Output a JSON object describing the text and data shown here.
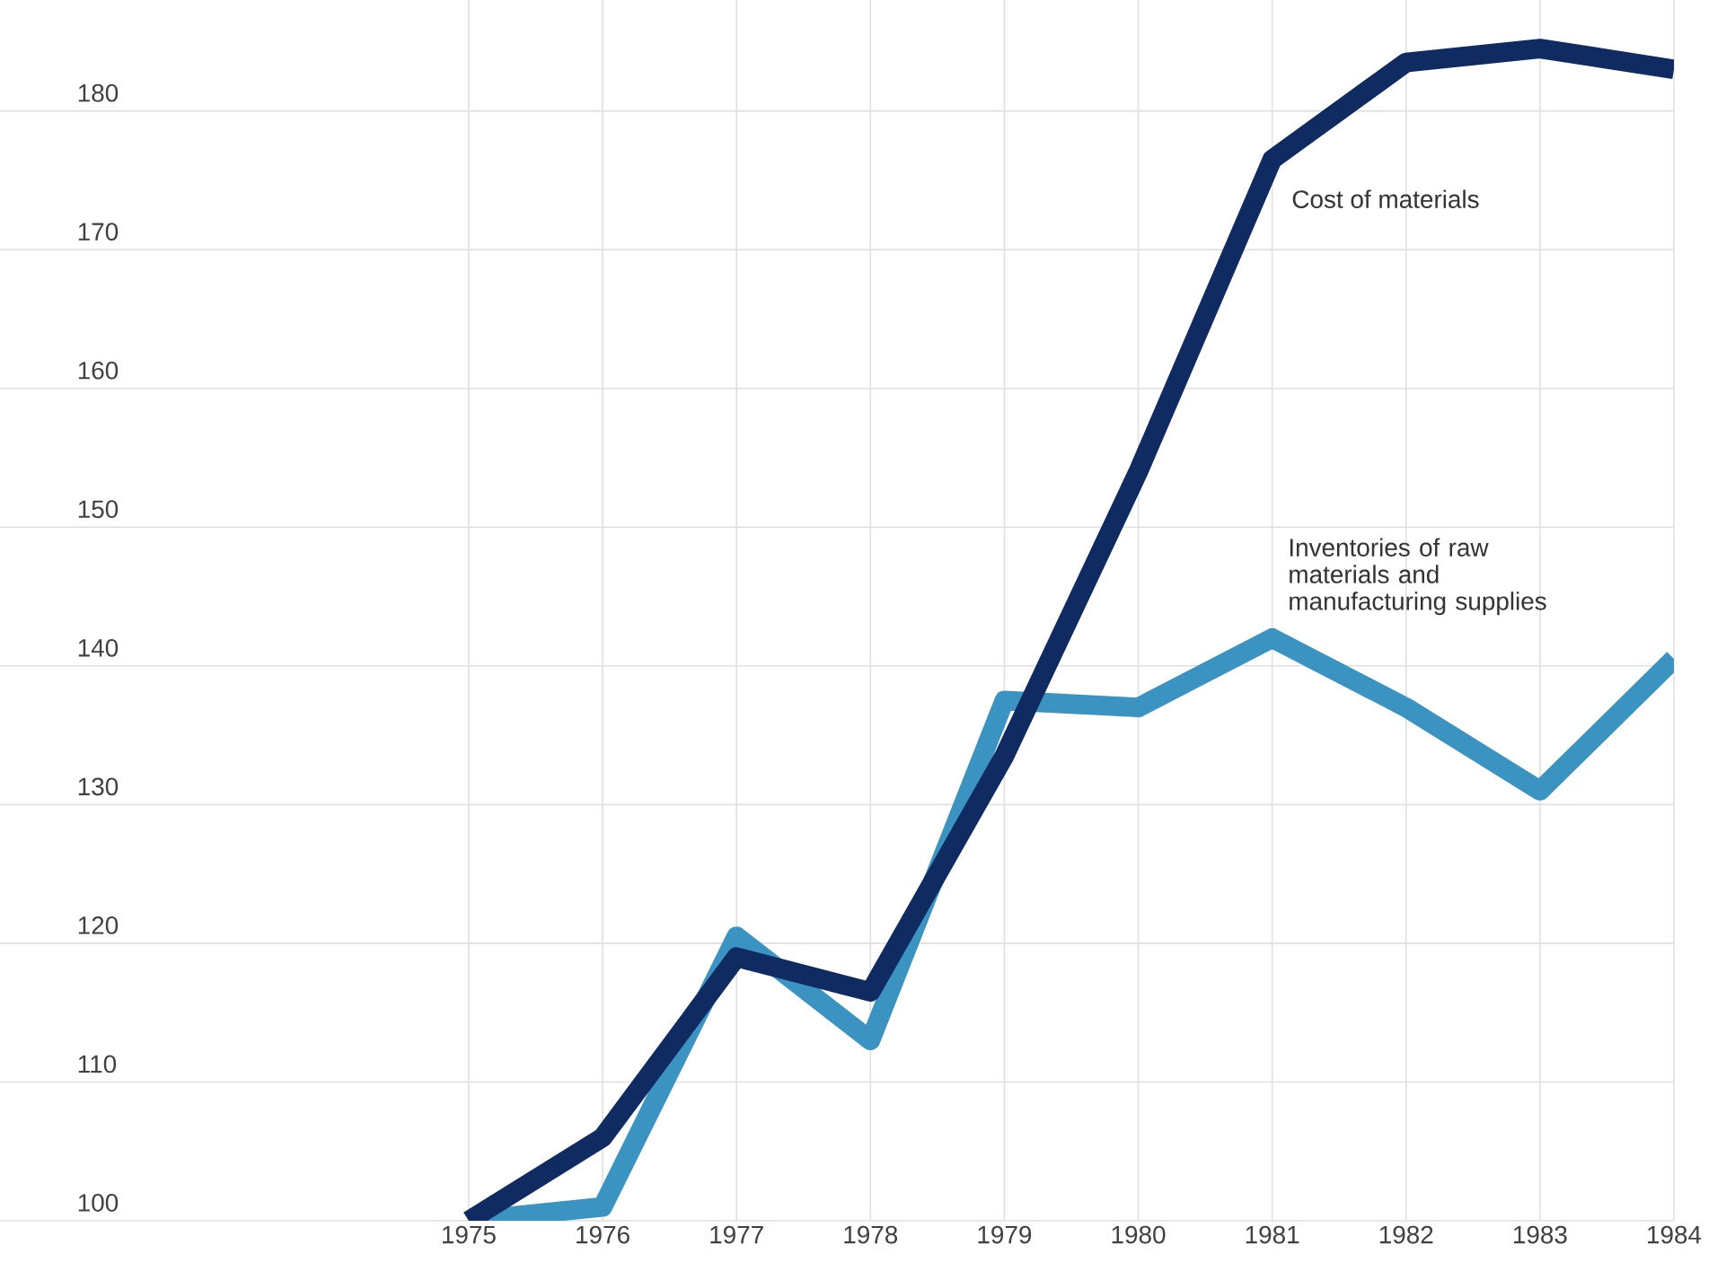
{
  "chart_data": {
    "type": "line",
    "x": [
      1975,
      1976,
      1977,
      1978,
      1979,
      1980,
      1981,
      1982,
      1983,
      1984
    ],
    "series": [
      {
        "name": "Cost of materials",
        "color": "#0f2b62",
        "values": [
          100,
          106,
          119,
          116.5,
          133.5,
          154,
          176.5,
          183.5,
          184.5,
          183
        ]
      },
      {
        "name": "Inventories of raw materials and manufacturing supplies",
        "color": "#3a93c0",
        "values": [
          100,
          101,
          120.5,
          113,
          137.5,
          137,
          142,
          137,
          131,
          140.5
        ]
      }
    ],
    "xlim": [
      1971.5,
      1984
    ],
    "ylim": [
      100,
      188
    ],
    "xticks": [
      1975,
      1976,
      1977,
      1978,
      1979,
      1980,
      1981,
      1982,
      1983,
      1984
    ],
    "yticks": [
      100,
      110,
      120,
      130,
      140,
      150,
      160,
      170,
      180
    ],
    "grid": true,
    "marker": "none",
    "line_style": "solid"
  }
}
